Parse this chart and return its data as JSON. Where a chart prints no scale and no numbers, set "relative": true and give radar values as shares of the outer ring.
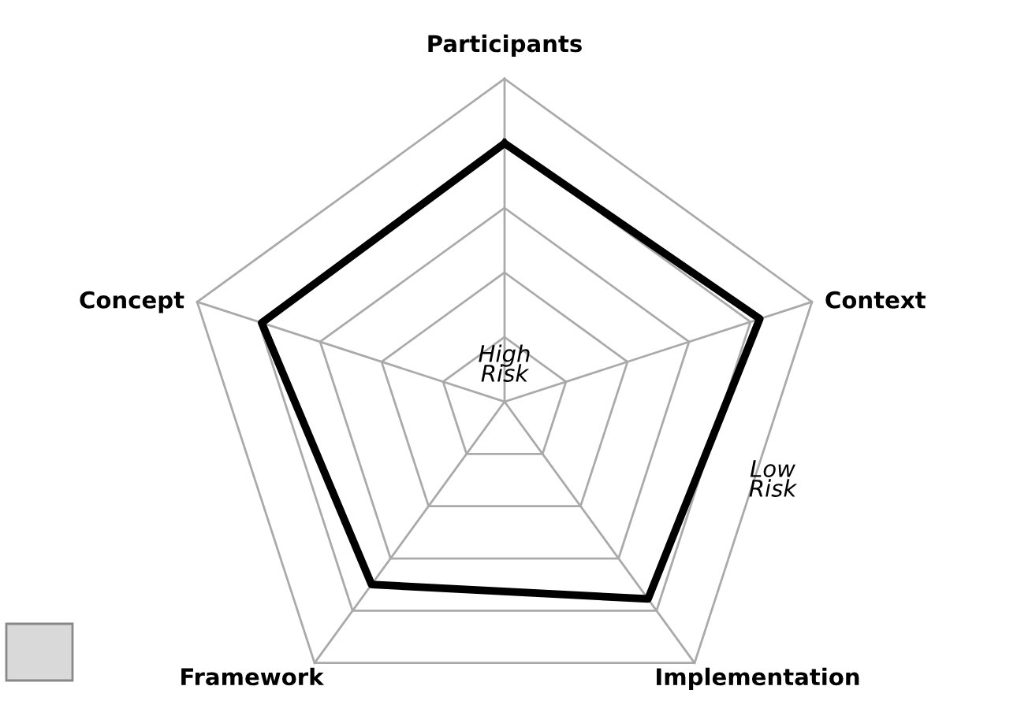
{
  "chart_data": {
    "type": "radar",
    "relative": true,
    "grid": true,
    "categories": [
      "Participants",
      "Context",
      "Implementation",
      "Framework",
      "Concept"
    ],
    "series": [
      {
        "color": "#000000",
        "values": [
          0.8,
          0.83,
          0.755,
          0.7,
          0.79
        ]
      }
    ],
    "annotations": [
      "High\nRisk",
      "Low\nRisk"
    ]
  }
}
